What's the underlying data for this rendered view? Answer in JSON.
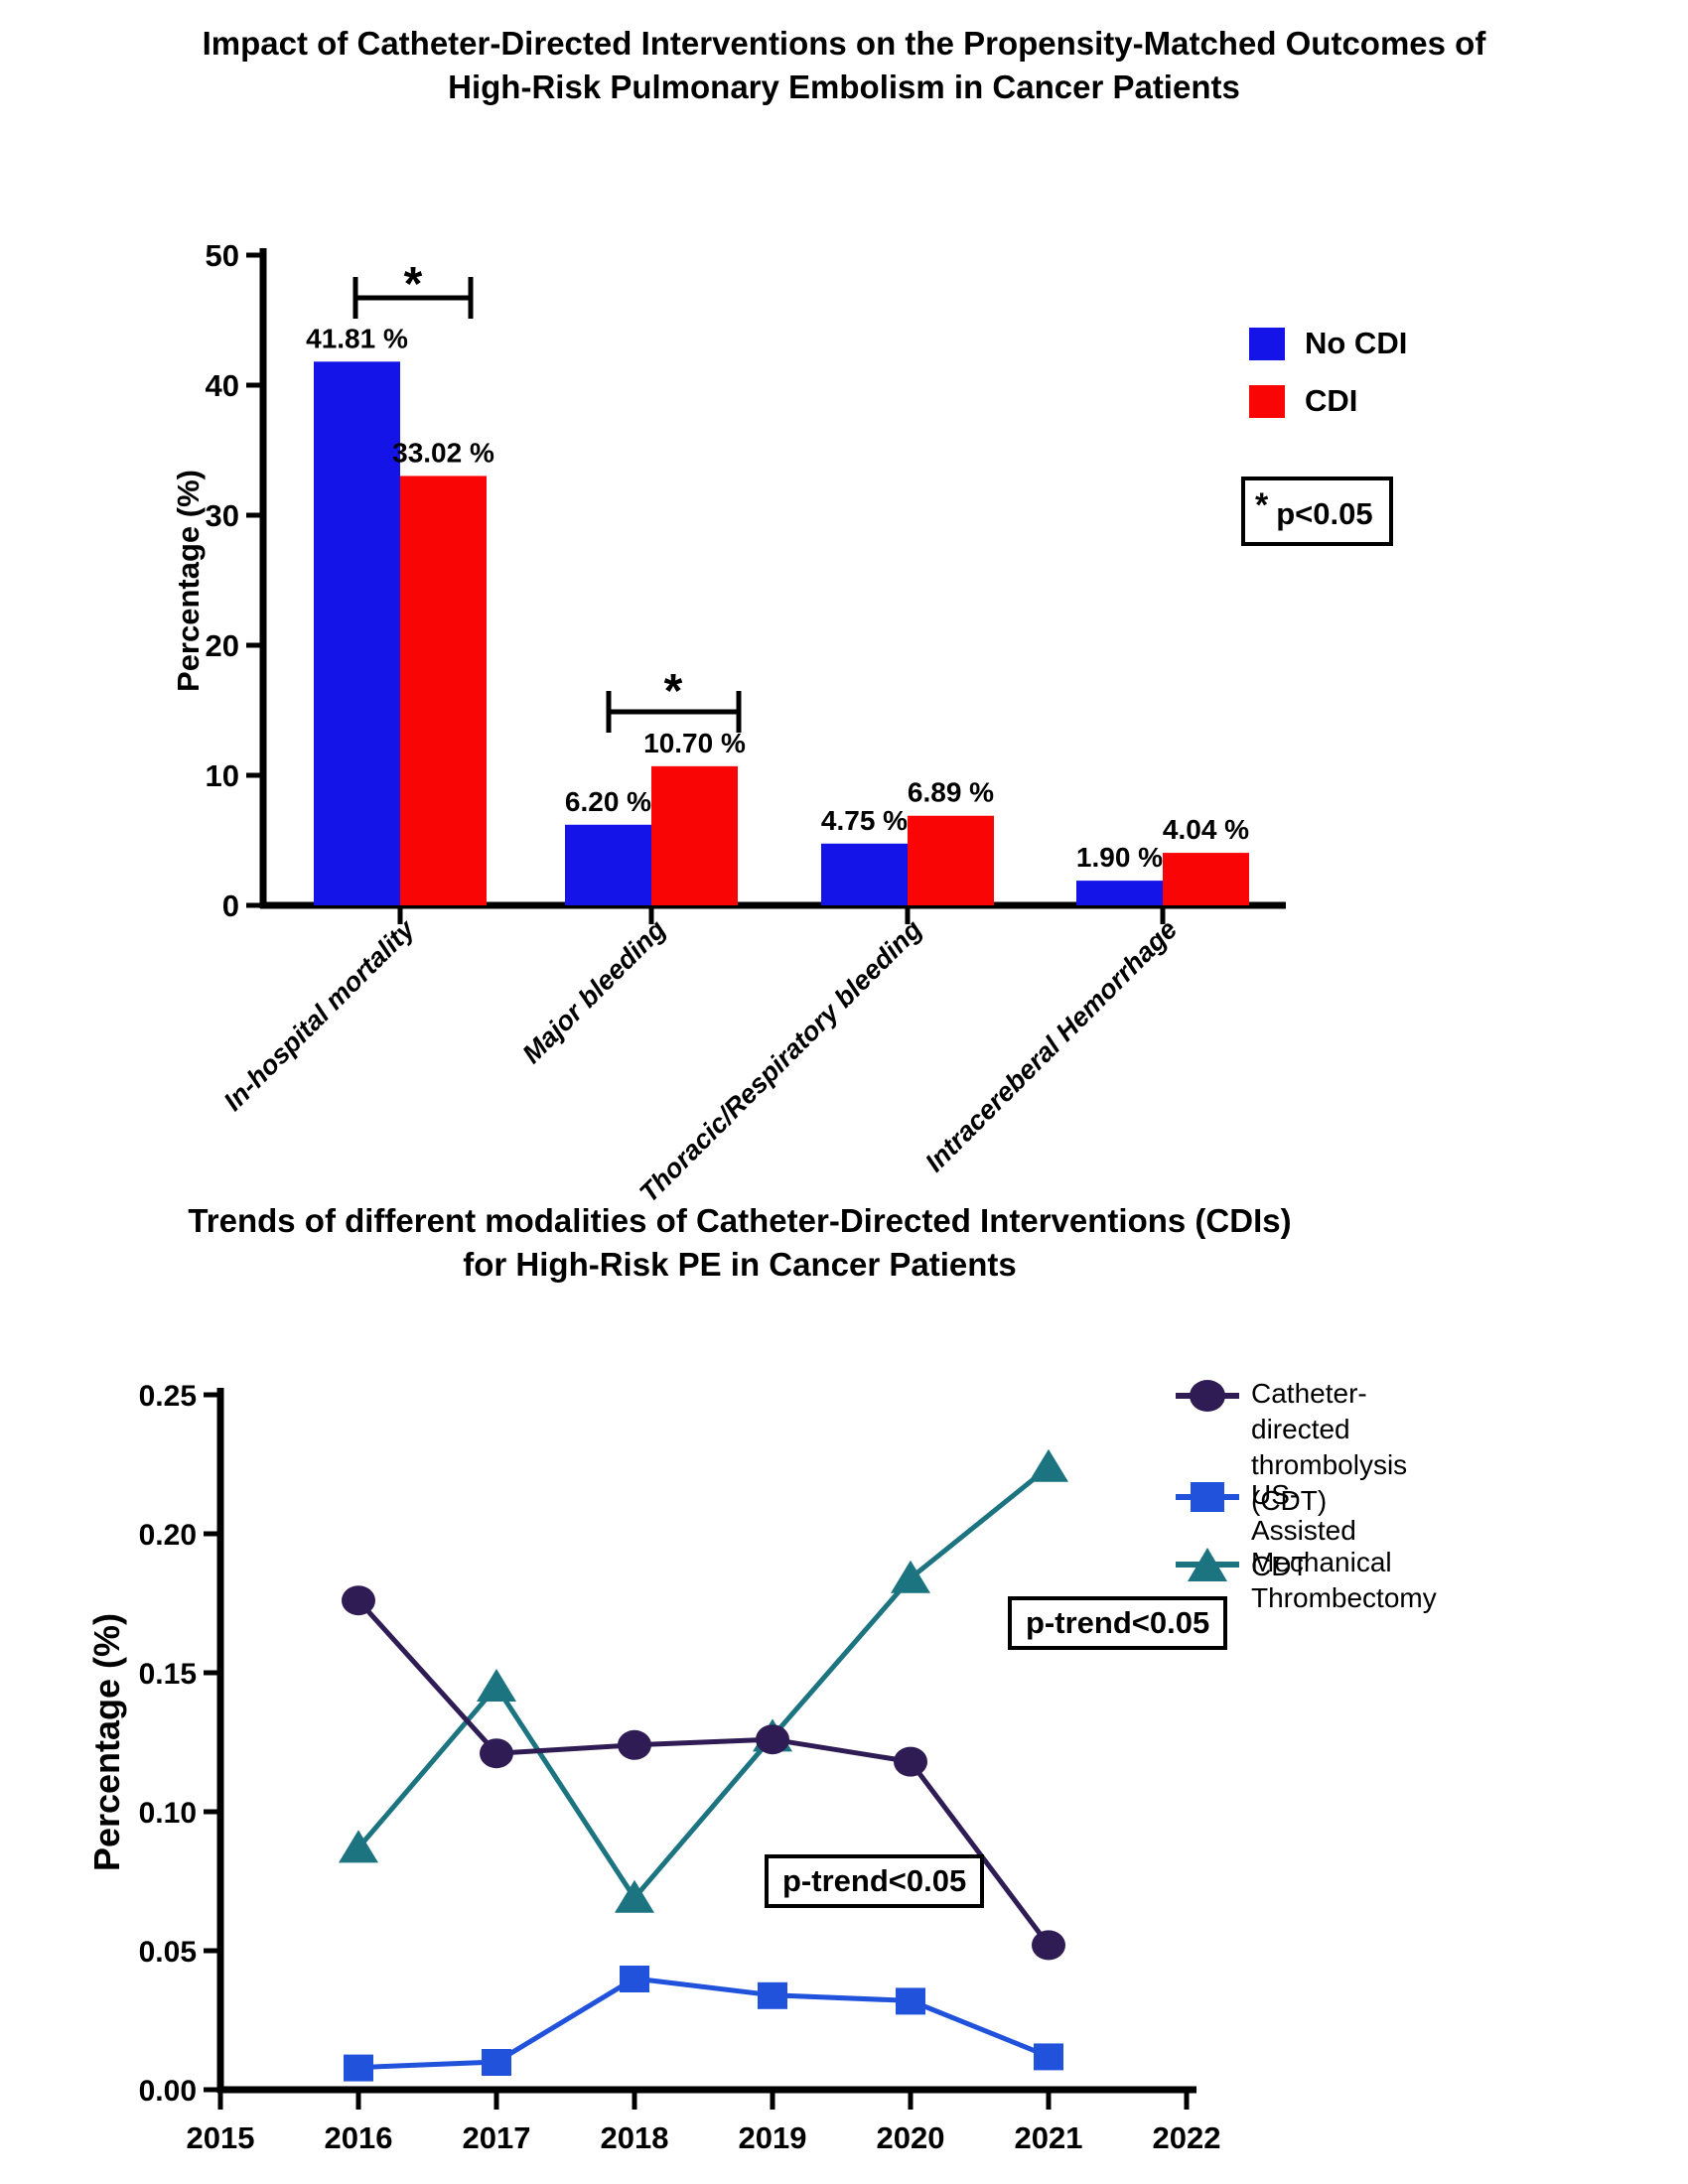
{
  "figure1": {
    "title_lines": [
      "Impact of Catheter-Directed Interventions on the Propensity-Matched Outcomes of",
      "High-Risk Pulmonary Embolism in Cancer Patients"
    ],
    "sig_box_asterisk": "*",
    "sig_box_text": "p<0.05"
  },
  "figure2": {
    "title_lines": [
      "Trends of different modalities of Catheter-Directed Interventions (CDIs)",
      "for High-Risk PE in Cancer Patients"
    ],
    "legend": [
      {
        "line1": "Catheter-directed thrombolysis",
        "line2": "(CDT)"
      },
      {
        "line1": "US-Assisted CDT",
        "line2": ""
      },
      {
        "line1": "Mechanical Thrombectomy",
        "line2": ""
      }
    ]
  },
  "chart_data": [
    {
      "type": "bar",
      "title": "Impact of Catheter-Directed Interventions on the Propensity-Matched Outcomes of High-Risk Pulmonary Embolism in Cancer Patients",
      "categories": [
        "In-hospital mortality",
        "Major bleeding",
        "Thoracic/Respiratory bleeding",
        "Intracereberal Hemorrhage"
      ],
      "series": [
        {
          "name": "No CDI",
          "color": "#1414e8",
          "values": [
            41.81,
            6.2,
            4.75,
            1.9
          ],
          "labels": [
            "41.81 %",
            "6.20 %",
            "4.75 %",
            "1.90 %"
          ]
        },
        {
          "name": "CDI",
          "color": "#fa0505",
          "values": [
            33.02,
            10.7,
            6.89,
            4.04
          ],
          "labels": [
            "33.02 %",
            "10.70 %",
            "6.89 %",
            "4.04 %"
          ]
        }
      ],
      "xlabel": "",
      "ylabel": "Percentage (%)",
      "ylim": [
        0,
        50
      ],
      "yticks": [
        0,
        10,
        20,
        30,
        40,
        50
      ],
      "grid": false,
      "legend_position": "right",
      "significance": [
        {
          "category_index": 0,
          "label": "*"
        },
        {
          "category_index": 1,
          "label": "*"
        }
      ],
      "sig_note": "* p<0.05"
    },
    {
      "type": "line",
      "title": "Trends of different modalities of Catheter-Directed Interventions (CDIs) for High-Risk PE in Cancer Patients",
      "x": [
        2016,
        2017,
        2018,
        2019,
        2020,
        2021
      ],
      "xticks": [
        2015,
        2016,
        2017,
        2018,
        2019,
        2020,
        2021,
        2022
      ],
      "xlim": [
        2015,
        2022
      ],
      "series": [
        {
          "name": "Catheter-directed thrombolysis (CDT)",
          "marker": "circle",
          "color": "#2f1c55",
          "values": [
            0.176,
            0.121,
            0.124,
            0.126,
            0.118,
            0.052
          ]
        },
        {
          "name": "US-Assisted CDT",
          "marker": "square",
          "color": "#2152dc",
          "values": [
            0.008,
            0.01,
            0.04,
            0.034,
            0.032,
            0.012
          ]
        },
        {
          "name": "Mechanical Thrombectomy",
          "marker": "triangle",
          "color": "#1c7480",
          "values": [
            0.087,
            0.145,
            0.069,
            0.127,
            0.184,
            0.224
          ]
        }
      ],
      "xlabel": "",
      "ylabel": "Percentage (%)",
      "ylim": [
        0,
        0.25
      ],
      "yticks": [
        0.0,
        0.05,
        0.1,
        0.15,
        0.2,
        0.25
      ],
      "grid": false,
      "legend_position": "right",
      "annotations": [
        {
          "text": "p-trend<0.05",
          "target": "Mechanical Thrombectomy"
        },
        {
          "text": "p-trend<0.05",
          "target": "Catheter-directed thrombolysis (CDT)"
        }
      ]
    }
  ]
}
